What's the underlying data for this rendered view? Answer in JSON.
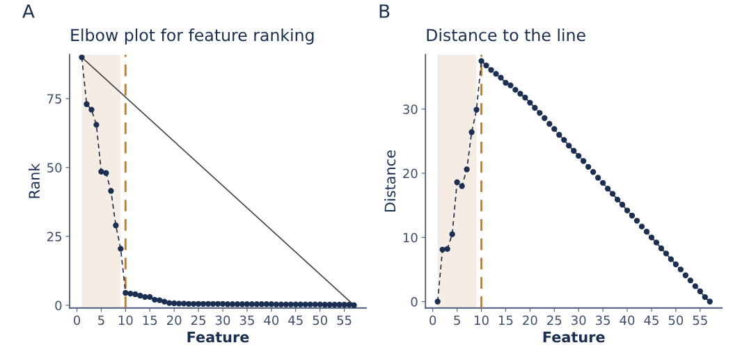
{
  "chart_data": [
    {
      "type": "line",
      "title": "Elbow plot for feature ranking",
      "xlabel": "Feature",
      "ylabel": "Rank",
      "annotations": [
        "A"
      ],
      "x": [
        1,
        2,
        3,
        4,
        5,
        6,
        7,
        8,
        9,
        10,
        11,
        12,
        13,
        14,
        15,
        16,
        17,
        18,
        19,
        20,
        21,
        22,
        23,
        24,
        25,
        26,
        27,
        28,
        29,
        30,
        31,
        32,
        33,
        34,
        35,
        36,
        37,
        38,
        39,
        40,
        41,
        42,
        43,
        44,
        45,
        46,
        47,
        48,
        49,
        50,
        51,
        52,
        53,
        54,
        55,
        56,
        57
      ],
      "series": [
        {
          "color": "#1b2f52",
          "marker": "circle",
          "line_style": "dashed",
          "values": [
            90,
            73,
            71,
            65.5,
            48.5,
            48,
            41.5,
            29,
            20.5,
            4.5,
            4.2,
            4.0,
            3.5,
            3.0,
            3.0,
            2.0,
            1.8,
            1.3,
            0.8,
            0.7,
            0.6,
            0.6,
            0.5,
            0.5,
            0.5,
            0.5,
            0.5,
            0.5,
            0.5,
            0.5,
            0.4,
            0.4,
            0.4,
            0.4,
            0.4,
            0.4,
            0.4,
            0.4,
            0.4,
            0.4,
            0.3,
            0.3,
            0.3,
            0.3,
            0.3,
            0.3,
            0.3,
            0.3,
            0.3,
            0.3,
            0.2,
            0.2,
            0.2,
            0.2,
            0.2,
            0.2,
            0
          ]
        },
        {
          "type": "line",
          "x": [
            1,
            57
          ],
          "color": "#444444",
          "marker": "none",
          "line_style": "solid",
          "values": [
            90,
            0
          ]
        }
      ],
      "ref_lines": [
        {
          "axis": "x",
          "value": 10,
          "color": "#c8782a",
          "line_style": "dashed"
        }
      ],
      "bands": [
        {
          "axis": "x",
          "from": 1,
          "to": 9,
          "color": "#f5ede3"
        }
      ],
      "xlim": [
        -1.5,
        59.5
      ],
      "xticks": [
        0,
        5,
        10,
        15,
        20,
        25,
        30,
        35,
        40,
        45,
        50,
        55
      ],
      "ylim": [
        -1,
        91
      ],
      "yticks": [
        0,
        25,
        50,
        75
      ],
      "grid": false,
      "legend": false
    },
    {
      "type": "line",
      "title": "Distance to the line",
      "xlabel": "Feature",
      "ylabel": "Distance",
      "annotations": [
        "B"
      ],
      "x": [
        1,
        2,
        3,
        4,
        5,
        6,
        7,
        8,
        9,
        10,
        11,
        12,
        13,
        14,
        15,
        16,
        17,
        18,
        19,
        20,
        21,
        22,
        23,
        24,
        25,
        26,
        27,
        28,
        29,
        30,
        31,
        32,
        33,
        34,
        35,
        36,
        37,
        38,
        39,
        40,
        41,
        42,
        43,
        44,
        45,
        46,
        47,
        48,
        49,
        50,
        51,
        52,
        53,
        54,
        55,
        56,
        57
      ],
      "series": [
        {
          "color": "#1b2f52",
          "marker": "circle",
          "line_style": "dashed",
          "values": [
            0,
            8.1,
            8.2,
            10.5,
            18.6,
            18.0,
            20.6,
            26.4,
            29.9,
            37.5,
            36.8,
            36.1,
            35.5,
            34.9,
            34.1,
            33.7,
            33.0,
            32.4,
            31.8,
            31.0,
            30.2,
            29.4,
            28.6,
            27.7,
            26.9,
            26.0,
            25.2,
            24.3,
            23.5,
            22.7,
            21.9,
            21.0,
            20.2,
            19.3,
            18.5,
            17.6,
            16.8,
            15.9,
            15.1,
            14.2,
            13.4,
            12.6,
            11.7,
            10.9,
            10.0,
            9.2,
            8.3,
            7.5,
            6.6,
            5.8,
            5.0,
            4.1,
            3.3,
            2.4,
            1.6,
            0.7,
            0
          ]
        }
      ],
      "ref_lines": [
        {
          "axis": "x",
          "value": 10,
          "color": "#c8782a",
          "line_style": "dashed"
        }
      ],
      "bands": [
        {
          "axis": "x",
          "from": 1,
          "to": 9,
          "color": "#f5ede3"
        }
      ],
      "xlim": [
        -1.5,
        59.5
      ],
      "xticks": [
        0,
        5,
        10,
        15,
        20,
        25,
        30,
        35,
        40,
        45,
        50,
        55
      ],
      "ylim": [
        -1,
        38.5
      ],
      "yticks": [
        0,
        10,
        20,
        30
      ],
      "grid": false,
      "legend": false
    }
  ]
}
